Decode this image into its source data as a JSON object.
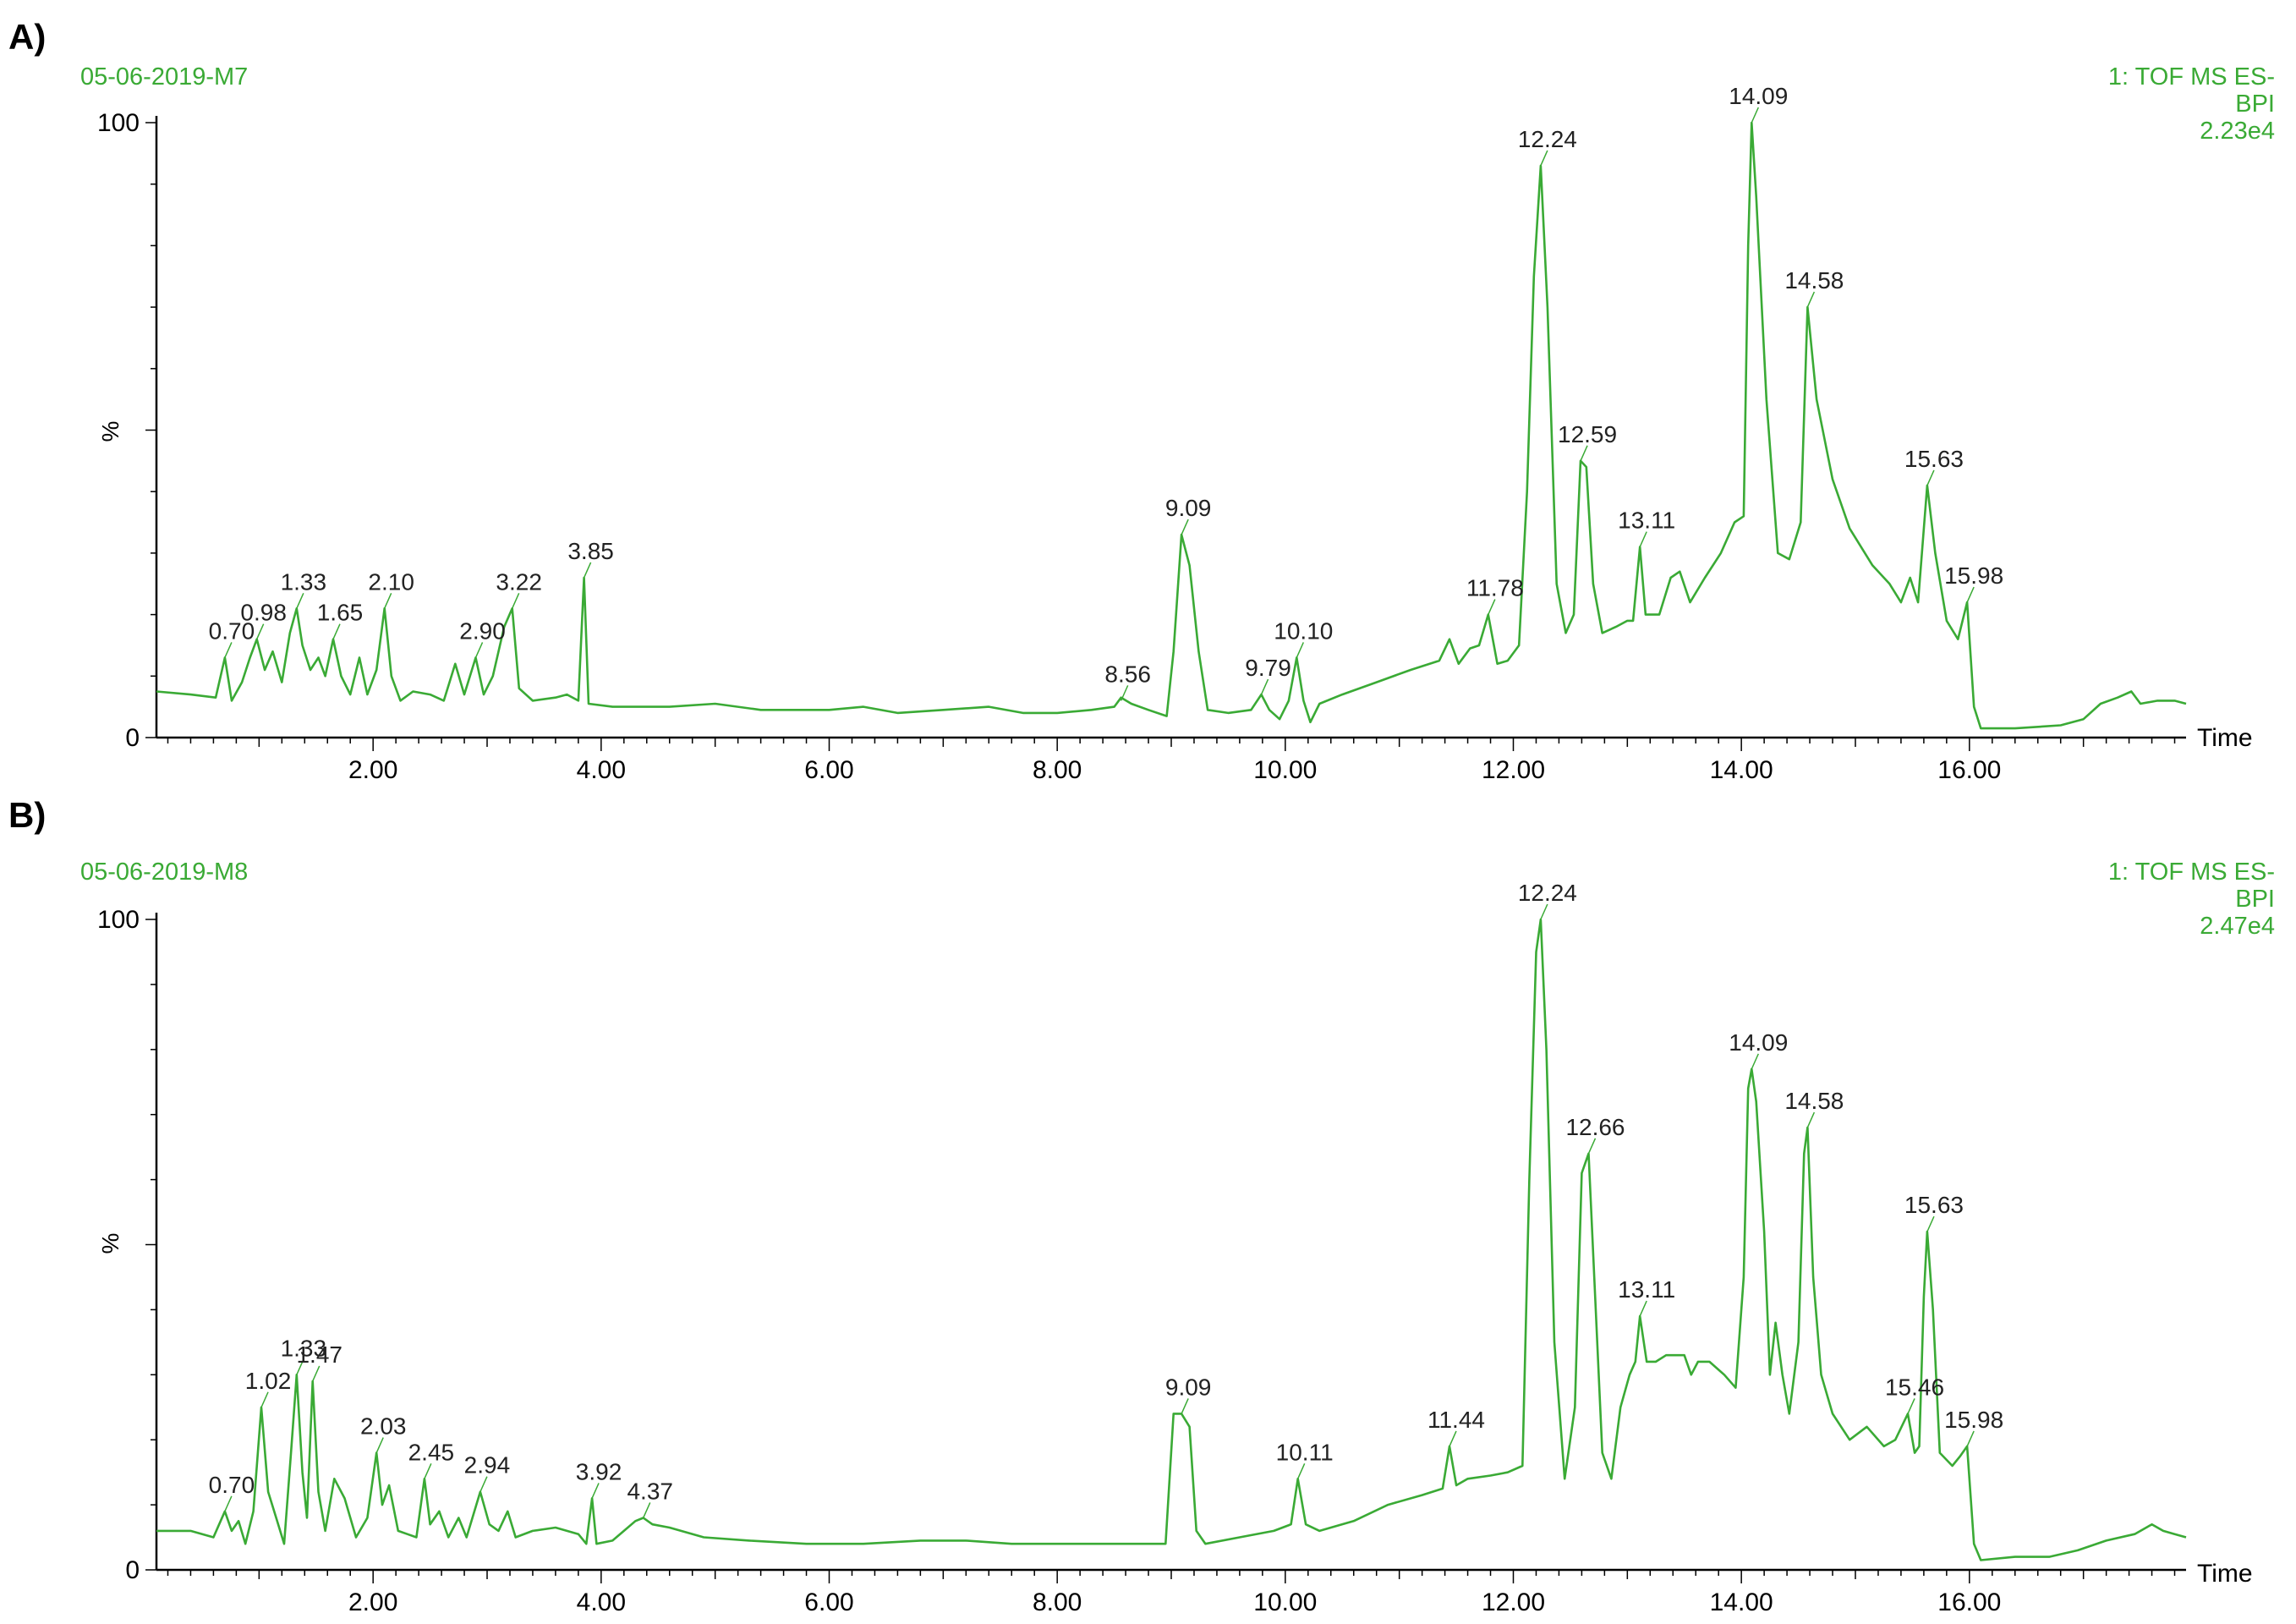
{
  "figure": {
    "colors": {
      "trace": "#3aaa35",
      "green_text": "#3aaa35",
      "axis": "#000000",
      "labels": "#222222"
    }
  },
  "chart_data": [
    {
      "type": "line",
      "panel_label": "A)",
      "sample": "05-06-2019-M7",
      "header": [
        "1: TOF MS ES-",
        "BPI",
        "2.23e4"
      ],
      "xlabel": "Time",
      "ylabel": "%",
      "xlim": [
        0.1,
        17.9
      ],
      "ylim": [
        0,
        100
      ],
      "xticks": [
        "2.00",
        "4.00",
        "6.00",
        "8.00",
        "10.00",
        "12.00",
        "14.00",
        "16.00"
      ],
      "yticks": [
        "0",
        "100"
      ],
      "peaks": [
        {
          "label": "0.70",
          "x": 0.7,
          "y": 13
        },
        {
          "label": "0.98",
          "x": 0.98,
          "y": 16
        },
        {
          "label": "1.33",
          "x": 1.33,
          "y": 21
        },
        {
          "label": "1.65",
          "x": 1.65,
          "y": 16
        },
        {
          "label": "2.10",
          "x": 2.1,
          "y": 21
        },
        {
          "label": "2.90",
          "x": 2.9,
          "y": 13
        },
        {
          "label": "3.22",
          "x": 3.22,
          "y": 21
        },
        {
          "label": "3.85",
          "x": 3.85,
          "y": 26
        },
        {
          "label": "8.56",
          "x": 8.56,
          "y": 6
        },
        {
          "label": "9.09",
          "x": 9.09,
          "y": 33
        },
        {
          "label": "9.79",
          "x": 9.79,
          "y": 7
        },
        {
          "label": "10.10",
          "x": 10.1,
          "y": 13
        },
        {
          "label": "11.78",
          "x": 11.78,
          "y": 20
        },
        {
          "label": "12.24",
          "x": 12.24,
          "y": 93
        },
        {
          "label": "12.59",
          "x": 12.59,
          "y": 45
        },
        {
          "label": "13.11",
          "x": 13.11,
          "y": 31
        },
        {
          "label": "14.09",
          "x": 14.09,
          "y": 100
        },
        {
          "label": "14.58",
          "x": 14.58,
          "y": 70
        },
        {
          "label": "15.63",
          "x": 15.63,
          "y": 41
        },
        {
          "label": "15.98",
          "x": 15.98,
          "y": 22
        }
      ],
      "trace": [
        [
          0.1,
          7.5
        ],
        [
          0.4,
          7
        ],
        [
          0.62,
          6.5
        ],
        [
          0.7,
          13
        ],
        [
          0.76,
          6
        ],
        [
          0.85,
          9
        ],
        [
          0.92,
          13
        ],
        [
          0.98,
          16
        ],
        [
          1.05,
          11
        ],
        [
          1.12,
          14
        ],
        [
          1.2,
          9
        ],
        [
          1.27,
          17
        ],
        [
          1.33,
          21
        ],
        [
          1.38,
          15
        ],
        [
          1.45,
          11
        ],
        [
          1.52,
          13
        ],
        [
          1.58,
          10
        ],
        [
          1.65,
          16
        ],
        [
          1.72,
          10
        ],
        [
          1.8,
          7
        ],
        [
          1.88,
          13
        ],
        [
          1.95,
          7
        ],
        [
          2.03,
          11
        ],
        [
          2.1,
          21
        ],
        [
          2.16,
          10
        ],
        [
          2.24,
          6
        ],
        [
          2.35,
          7.5
        ],
        [
          2.5,
          7
        ],
        [
          2.62,
          6
        ],
        [
          2.72,
          12
        ],
        [
          2.8,
          7
        ],
        [
          2.9,
          13
        ],
        [
          2.97,
          7
        ],
        [
          3.05,
          10
        ],
        [
          3.15,
          18
        ],
        [
          3.22,
          21
        ],
        [
          3.28,
          8
        ],
        [
          3.4,
          6
        ],
        [
          3.6,
          6.5
        ],
        [
          3.7,
          7
        ],
        [
          3.8,
          6
        ],
        [
          3.85,
          26
        ],
        [
          3.89,
          5.5
        ],
        [
          4.1,
          5
        ],
        [
          4.6,
          5
        ],
        [
          5.0,
          5.5
        ],
        [
          5.4,
          4.5
        ],
        [
          6.0,
          4.5
        ],
        [
          6.3,
          5
        ],
        [
          6.6,
          4
        ],
        [
          7.0,
          4.5
        ],
        [
          7.4,
          5
        ],
        [
          7.7,
          4
        ],
        [
          8.0,
          4
        ],
        [
          8.3,
          4.5
        ],
        [
          8.5,
          5
        ],
        [
          8.56,
          6.5
        ],
        [
          8.65,
          5.5
        ],
        [
          8.8,
          4.5
        ],
        [
          8.96,
          3.5
        ],
        [
          9.02,
          14
        ],
        [
          9.09,
          33
        ],
        [
          9.16,
          28
        ],
        [
          9.24,
          14
        ],
        [
          9.32,
          4.5
        ],
        [
          9.5,
          4
        ],
        [
          9.7,
          4.5
        ],
        [
          9.79,
          7
        ],
        [
          9.86,
          4.5
        ],
        [
          9.95,
          3
        ],
        [
          10.03,
          6
        ],
        [
          10.1,
          13
        ],
        [
          10.16,
          6
        ],
        [
          10.22,
          2.5
        ],
        [
          10.3,
          5.5
        ],
        [
          10.5,
          7
        ],
        [
          10.8,
          9
        ],
        [
          11.1,
          11
        ],
        [
          11.35,
          12.5
        ],
        [
          11.44,
          16
        ],
        [
          11.52,
          12
        ],
        [
          11.62,
          14.5
        ],
        [
          11.7,
          15
        ],
        [
          11.78,
          20
        ],
        [
          11.86,
          12
        ],
        [
          11.95,
          12.5
        ],
        [
          12.05,
          15
        ],
        [
          12.12,
          40
        ],
        [
          12.18,
          75
        ],
        [
          12.24,
          93
        ],
        [
          12.3,
          70
        ],
        [
          12.38,
          25
        ],
        [
          12.46,
          17
        ],
        [
          12.53,
          20
        ],
        [
          12.59,
          45
        ],
        [
          12.64,
          44
        ],
        [
          12.7,
          25
        ],
        [
          12.78,
          17
        ],
        [
          12.9,
          18
        ],
        [
          13.0,
          19
        ],
        [
          13.05,
          19
        ],
        [
          13.11,
          31
        ],
        [
          13.16,
          20
        ],
        [
          13.28,
          20
        ],
        [
          13.38,
          26
        ],
        [
          13.46,
          27
        ],
        [
          13.55,
          22
        ],
        [
          13.68,
          26
        ],
        [
          13.82,
          30
        ],
        [
          13.94,
          35
        ],
        [
          14.02,
          36
        ],
        [
          14.06,
          80
        ],
        [
          14.09,
          100
        ],
        [
          14.13,
          88
        ],
        [
          14.22,
          55
        ],
        [
          14.32,
          30
        ],
        [
          14.42,
          29
        ],
        [
          14.52,
          35
        ],
        [
          14.58,
          70
        ],
        [
          14.66,
          55
        ],
        [
          14.8,
          42
        ],
        [
          14.95,
          34
        ],
        [
          15.15,
          28
        ],
        [
          15.3,
          25
        ],
        [
          15.4,
          22
        ],
        [
          15.48,
          26
        ],
        [
          15.55,
          22
        ],
        [
          15.63,
          41
        ],
        [
          15.7,
          30
        ],
        [
          15.8,
          19
        ],
        [
          15.9,
          16
        ],
        [
          15.98,
          22
        ],
        [
          16.04,
          5
        ],
        [
          16.1,
          1.5
        ],
        [
          16.4,
          1.5
        ],
        [
          16.8,
          2
        ],
        [
          17.0,
          3
        ],
        [
          17.15,
          5.5
        ],
        [
          17.3,
          6.5
        ],
        [
          17.42,
          7.5
        ],
        [
          17.5,
          5.5
        ],
        [
          17.65,
          6
        ],
        [
          17.8,
          6
        ],
        [
          17.9,
          5.5
        ]
      ]
    },
    {
      "type": "line",
      "panel_label": "B)",
      "sample": "05-06-2019-M8",
      "header": [
        "1: TOF MS ES-",
        "BPI",
        "2.47e4"
      ],
      "xlabel": "Time",
      "ylabel": "%",
      "xlim": [
        0.1,
        17.9
      ],
      "ylim": [
        0,
        100
      ],
      "xticks": [
        "2.00",
        "4.00",
        "6.00",
        "8.00",
        "10.00",
        "12.00",
        "14.00",
        "16.00"
      ],
      "yticks": [
        "0",
        "100"
      ],
      "peaks": [
        {
          "label": "0.70",
          "x": 0.7,
          "y": 9
        },
        {
          "label": "1.02",
          "x": 1.02,
          "y": 25
        },
        {
          "label": "1.33",
          "x": 1.33,
          "y": 30
        },
        {
          "label": "1.47",
          "x": 1.47,
          "y": 29
        },
        {
          "label": "2.03",
          "x": 2.03,
          "y": 18
        },
        {
          "label": "2.45",
          "x": 2.45,
          "y": 14
        },
        {
          "label": "2.94",
          "x": 2.94,
          "y": 12
        },
        {
          "label": "3.92",
          "x": 3.92,
          "y": 11
        },
        {
          "label": "4.37",
          "x": 4.37,
          "y": 8
        },
        {
          "label": "9.09",
          "x": 9.09,
          "y": 24
        },
        {
          "label": "10.11",
          "x": 10.11,
          "y": 14
        },
        {
          "label": "11.44",
          "x": 11.44,
          "y": 19
        },
        {
          "label": "12.24",
          "x": 12.24,
          "y": 100
        },
        {
          "label": "12.66",
          "x": 12.66,
          "y": 64
        },
        {
          "label": "13.11",
          "x": 13.11,
          "y": 39
        },
        {
          "label": "14.09",
          "x": 14.09,
          "y": 77
        },
        {
          "label": "14.58",
          "x": 14.58,
          "y": 68
        },
        {
          "label": "15.46",
          "x": 15.46,
          "y": 24
        },
        {
          "label": "15.63",
          "x": 15.63,
          "y": 52
        },
        {
          "label": "15.98",
          "x": 15.98,
          "y": 19
        }
      ],
      "trace": [
        [
          0.1,
          6
        ],
        [
          0.4,
          6
        ],
        [
          0.6,
          5
        ],
        [
          0.7,
          9
        ],
        [
          0.76,
          6
        ],
        [
          0.82,
          7.5
        ],
        [
          0.88,
          4
        ],
        [
          0.95,
          9
        ],
        [
          1.02,
          25
        ],
        [
          1.08,
          12
        ],
        [
          1.15,
          8
        ],
        [
          1.22,
          4
        ],
        [
          1.28,
          18
        ],
        [
          1.33,
          30
        ],
        [
          1.38,
          15
        ],
        [
          1.42,
          8
        ],
        [
          1.47,
          29
        ],
        [
          1.52,
          12
        ],
        [
          1.58,
          6
        ],
        [
          1.66,
          14
        ],
        [
          1.75,
          11
        ],
        [
          1.85,
          5
        ],
        [
          1.95,
          8
        ],
        [
          2.03,
          18
        ],
        [
          2.08,
          10
        ],
        [
          2.14,
          13
        ],
        [
          2.22,
          6
        ],
        [
          2.3,
          5.5
        ],
        [
          2.38,
          5
        ],
        [
          2.45,
          14
        ],
        [
          2.5,
          7
        ],
        [
          2.58,
          9
        ],
        [
          2.66,
          5
        ],
        [
          2.75,
          8
        ],
        [
          2.82,
          5
        ],
        [
          2.94,
          12
        ],
        [
          3.02,
          7
        ],
        [
          3.1,
          6
        ],
        [
          3.18,
          9
        ],
        [
          3.25,
          5
        ],
        [
          3.4,
          6
        ],
        [
          3.6,
          6.5
        ],
        [
          3.8,
          5.5
        ],
        [
          3.87,
          4
        ],
        [
          3.92,
          11
        ],
        [
          3.96,
          4
        ],
        [
          4.1,
          4.5
        ],
        [
          4.2,
          6
        ],
        [
          4.3,
          7.5
        ],
        [
          4.37,
          8
        ],
        [
          4.45,
          7
        ],
        [
          4.6,
          6.5
        ],
        [
          4.9,
          5
        ],
        [
          5.3,
          4.5
        ],
        [
          5.8,
          4
        ],
        [
          6.3,
          4
        ],
        [
          6.8,
          4.5
        ],
        [
          7.2,
          4.5
        ],
        [
          7.6,
          4
        ],
        [
          8.0,
          4
        ],
        [
          8.5,
          4
        ],
        [
          8.95,
          4
        ],
        [
          9.02,
          24
        ],
        [
          9.09,
          24
        ],
        [
          9.16,
          22
        ],
        [
          9.22,
          6
        ],
        [
          9.3,
          4
        ],
        [
          9.6,
          5
        ],
        [
          9.9,
          6
        ],
        [
          10.05,
          7
        ],
        [
          10.11,
          14
        ],
        [
          10.18,
          7
        ],
        [
          10.3,
          6
        ],
        [
          10.6,
          7.5
        ],
        [
          10.9,
          10
        ],
        [
          11.2,
          11.5
        ],
        [
          11.38,
          12.5
        ],
        [
          11.44,
          19
        ],
        [
          11.5,
          13
        ],
        [
          11.6,
          14
        ],
        [
          11.8,
          14.5
        ],
        [
          11.95,
          15
        ],
        [
          12.08,
          16
        ],
        [
          12.14,
          60
        ],
        [
          12.2,
          95
        ],
        [
          12.24,
          100
        ],
        [
          12.29,
          80
        ],
        [
          12.36,
          35
        ],
        [
          12.45,
          14
        ],
        [
          12.54,
          25
        ],
        [
          12.6,
          61
        ],
        [
          12.66,
          64
        ],
        [
          12.71,
          45
        ],
        [
          12.78,
          18
        ],
        [
          12.86,
          14
        ],
        [
          12.94,
          25
        ],
        [
          13.02,
          30
        ],
        [
          13.07,
          32
        ],
        [
          13.11,
          39
        ],
        [
          13.17,
          32
        ],
        [
          13.25,
          32
        ],
        [
          13.34,
          33
        ],
        [
          13.5,
          33
        ],
        [
          13.56,
          30
        ],
        [
          13.62,
          32
        ],
        [
          13.72,
          32
        ],
        [
          13.85,
          30
        ],
        [
          13.95,
          28
        ],
        [
          14.02,
          45
        ],
        [
          14.06,
          74
        ],
        [
          14.09,
          77
        ],
        [
          14.13,
          72
        ],
        [
          14.2,
          52
        ],
        [
          14.25,
          30
        ],
        [
          14.3,
          38
        ],
        [
          14.36,
          30
        ],
        [
          14.42,
          24
        ],
        [
          14.5,
          35
        ],
        [
          14.55,
          64
        ],
        [
          14.58,
          68
        ],
        [
          14.63,
          45
        ],
        [
          14.7,
          30
        ],
        [
          14.8,
          24
        ],
        [
          14.95,
          20
        ],
        [
          15.1,
          22
        ],
        [
          15.25,
          19
        ],
        [
          15.35,
          20
        ],
        [
          15.46,
          24
        ],
        [
          15.52,
          18
        ],
        [
          15.56,
          19
        ],
        [
          15.6,
          42
        ],
        [
          15.63,
          52
        ],
        [
          15.68,
          40
        ],
        [
          15.74,
          18
        ],
        [
          15.85,
          16
        ],
        [
          15.92,
          17.5
        ],
        [
          15.98,
          19
        ],
        [
          16.04,
          4
        ],
        [
          16.1,
          1.5
        ],
        [
          16.4,
          2
        ],
        [
          16.7,
          2
        ],
        [
          16.95,
          3
        ],
        [
          17.2,
          4.5
        ],
        [
          17.45,
          5.5
        ],
        [
          17.6,
          7
        ],
        [
          17.7,
          6
        ],
        [
          17.8,
          5.5
        ],
        [
          17.9,
          5
        ]
      ]
    }
  ]
}
